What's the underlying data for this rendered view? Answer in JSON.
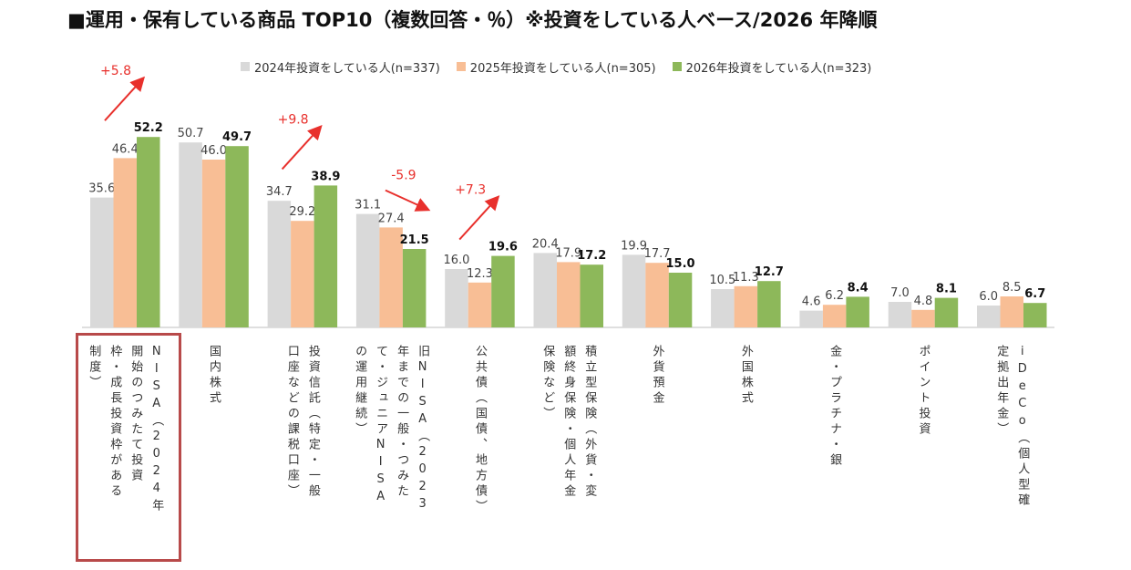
{
  "title": "■運用・保有している商品 TOP10（複数回答・％）※投資をしている人ベース/2026 年降順",
  "colors": {
    "s2024": "#d9d9d9",
    "s2025": "#f8be95",
    "s2026": "#8db85a",
    "axis": "#bfbfbf",
    "up": "#e8302c",
    "arrow_label": "#e8302c",
    "highlight": "#b84a4a"
  },
  "chart_data": {
    "type": "bar",
    "ylim": [
      0,
      60
    ],
    "grid": false,
    "legend_position": "top",
    "categories": [
      "NISA（2024年開始のつみたて投資枠・成長投資枠がある制度）",
      "国内株式",
      "投資信託（特定・一般口座などの課税口座）",
      "旧NISA（2023年までの一般・つみたて・ジュニアNISAの運用継続）",
      "公共債（国債、地方債）",
      "積立型保険（外貨・変額終身保険・個人年金保険など）",
      "外貨預金",
      "外国株式",
      "金・プラチナ・銀",
      "ポイント投資",
      "iDeCo（個人型確定拠出年金）"
    ],
    "category_lines": [
      [
        "NISA（2024年",
        "開始のつみたて投資",
        "枠・成長投資枠がある",
        "制度）"
      ],
      [
        "国内株式"
      ],
      [
        "投資信託（特定・一般",
        "口座などの課税口座）"
      ],
      [
        "旧NISA（2023",
        "年までの一般・つみた",
        "て・ジュニアNISA",
        "の運用継続）"
      ],
      [
        "公共債（国債、地方債）"
      ],
      [
        "積立型保険（外貨・変",
        "額終身保険・個人年金",
        "保険など）"
      ],
      [
        "外貨預金"
      ],
      [
        "外国株式"
      ],
      [
        "金・プラチナ・銀"
      ],
      [
        "ポイント投資"
      ],
      [
        "iDeCo（個人型確",
        "定拠出年金）"
      ]
    ],
    "series": [
      {
        "name": "2024年投資をしている人(n=337)",
        "values": [
          35.6,
          50.7,
          34.7,
          31.1,
          16.0,
          20.4,
          19.9,
          10.5,
          4.6,
          7.0,
          6.0
        ]
      },
      {
        "name": "2025年投資をしている人(n=305)",
        "values": [
          46.4,
          46.0,
          29.2,
          27.4,
          12.3,
          17.9,
          17.7,
          11.3,
          6.2,
          4.8,
          8.5
        ]
      },
      {
        "name": "2026年投資をしている人(n=323)",
        "values": [
          52.2,
          49.7,
          38.9,
          21.5,
          19.6,
          17.2,
          15.0,
          12.7,
          8.4,
          8.1,
          6.7
        ]
      }
    ],
    "labels": [
      [
        "35.6",
        "46.4",
        "52.2"
      ],
      [
        "50.7",
        "46.0",
        "49.7"
      ],
      [
        "34.7",
        "29.2",
        "38.9"
      ],
      [
        "31.1",
        "27.4",
        "21.5"
      ],
      [
        "16.0",
        "12.3",
        "19.6"
      ],
      [
        "20.4",
        "17.9",
        "17.2"
      ],
      [
        "19.9",
        "17.7",
        "15.0"
      ],
      [
        "10.5",
        "11.3",
        "12.7"
      ],
      [
        "4.6",
        "6.2",
        "8.4"
      ],
      [
        "7.0",
        "4.8",
        "8.1"
      ],
      [
        "6.0",
        "8.5",
        "6.7"
      ]
    ],
    "annotations": [
      {
        "category_index": 0,
        "text": "+5.8",
        "direction": "up"
      },
      {
        "category_index": 2,
        "text": "+9.8",
        "direction": "up"
      },
      {
        "category_index": 3,
        "text": "-5.9",
        "direction": "down"
      },
      {
        "category_index": 4,
        "text": "+7.3",
        "direction": "up"
      }
    ],
    "highlight_category_index": 0
  }
}
